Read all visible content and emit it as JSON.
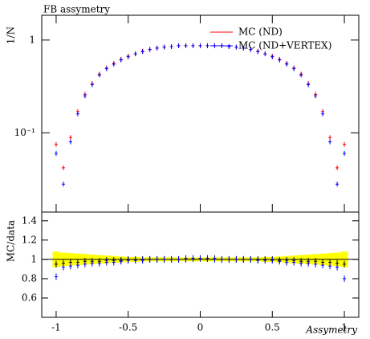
{
  "chart_data": [
    {
      "type": "scatter",
      "title": "FB assymetry",
      "y_label": "1/N",
      "log_y": true,
      "x": [
        -1,
        -0.95,
        -0.9,
        -0.85,
        -0.8,
        -0.75,
        -0.7,
        -0.65,
        -0.6,
        -0.55,
        -0.5,
        -0.45,
        -0.4,
        -0.35,
        -0.3,
        -0.25,
        -0.2,
        -0.15,
        -0.1,
        -0.05,
        0,
        0.05,
        0.1,
        0.15,
        0.2,
        0.25,
        0.3,
        0.35,
        0.4,
        0.45,
        0.5,
        0.55,
        0.6,
        0.65,
        0.7,
        0.75,
        0.8,
        0.85,
        0.9,
        0.95,
        1
      ],
      "series": [
        {
          "name": "MC (ND)",
          "color": "#ff0000",
          "values": [
            0.075,
            0.042,
            0.089,
            0.17,
            0.26,
            0.34,
            0.43,
            0.5,
            0.56,
            0.62,
            0.67,
            0.71,
            0.76,
            0.79,
            0.82,
            0.84,
            0.85,
            0.87,
            0.87,
            0.87,
            0.87,
            0.87,
            0.87,
            0.87,
            0.85,
            0.84,
            0.82,
            0.79,
            0.76,
            0.71,
            0.67,
            0.62,
            0.56,
            0.5,
            0.43,
            0.34,
            0.26,
            0.17,
            0.089,
            0.042,
            0.075
          ]
        },
        {
          "name": "MC (ND+VERTEX)",
          "color": "#0000ff",
          "values": [
            0.06,
            0.028,
            0.08,
            0.16,
            0.25,
            0.33,
            0.42,
            0.49,
            0.55,
            0.61,
            0.66,
            0.71,
            0.75,
            0.79,
            0.82,
            0.84,
            0.85,
            0.87,
            0.87,
            0.87,
            0.87,
            0.87,
            0.87,
            0.87,
            0.85,
            0.84,
            0.82,
            0.79,
            0.75,
            0.71,
            0.66,
            0.61,
            0.55,
            0.49,
            0.42,
            0.33,
            0.25,
            0.16,
            0.08,
            0.028,
            0.06
          ]
        }
      ],
      "xlim": [
        -1.1,
        1.1
      ],
      "ylim": [
        0.014,
        1.85
      ],
      "yticks": [
        1,
        {
          "value": 0.1,
          "label": "10⁻¹"
        }
      ]
    },
    {
      "type": "ratio",
      "y_label": "MC/data",
      "x_label": "Assymetry",
      "x": [
        -1,
        -0.95,
        -0.9,
        -0.85,
        -0.8,
        -0.75,
        -0.7,
        -0.65,
        -0.6,
        -0.55,
        -0.5,
        -0.45,
        -0.4,
        -0.35,
        -0.3,
        -0.25,
        -0.2,
        -0.15,
        -0.1,
        -0.05,
        0,
        0.05,
        0.1,
        0.15,
        0.2,
        0.25,
        0.3,
        0.35,
        0.4,
        0.45,
        0.5,
        0.55,
        0.6,
        0.65,
        0.7,
        0.75,
        0.8,
        0.85,
        0.9,
        0.95,
        1
      ],
      "band": {
        "color": "#ffff00",
        "lower": [
          0.92,
          0.93,
          0.935,
          0.94,
          0.945,
          0.95,
          0.955,
          0.96,
          0.965,
          0.97,
          0.975,
          0.975,
          0.98,
          0.98,
          0.98,
          0.98,
          0.98,
          0.98,
          0.98,
          0.98,
          0.98,
          0.98,
          0.98,
          0.98,
          0.98,
          0.98,
          0.98,
          0.98,
          0.98,
          0.975,
          0.975,
          0.97,
          0.965,
          0.96,
          0.955,
          0.95,
          0.945,
          0.94,
          0.935,
          0.93,
          0.92
        ],
        "upper": [
          1.08,
          1.07,
          1.065,
          1.06,
          1.055,
          1.05,
          1.045,
          1.04,
          1.035,
          1.03,
          1.025,
          1.025,
          1.02,
          1.02,
          1.02,
          1.02,
          1.02,
          1.02,
          1.02,
          1.02,
          1.02,
          1.02,
          1.02,
          1.02,
          1.02,
          1.02,
          1.02,
          1.02,
          1.02,
          1.025,
          1.025,
          1.03,
          1.035,
          1.04,
          1.045,
          1.05,
          1.055,
          1.06,
          1.065,
          1.07,
          1.08
        ]
      },
      "series": [
        {
          "color": "#000000",
          "values": [
            0.95,
            0.96,
            0.97,
            0.97,
            0.98,
            0.98,
            0.98,
            0.99,
            0.99,
            0.99,
            1,
            1,
            1,
            1,
            1,
            1,
            1,
            1,
            1.01,
            1.01,
            1.01,
            1.01,
            1.01,
            1,
            1,
            1,
            1,
            1,
            1,
            1,
            1,
            0.99,
            0.99,
            0.99,
            0.98,
            0.98,
            0.98,
            0.97,
            0.97,
            0.96,
            0.95
          ]
        },
        {
          "color": "#0000ff",
          "values": [
            0.82,
            0.92,
            0.93,
            0.94,
            0.95,
            0.96,
            0.96,
            0.97,
            0.97,
            0.98,
            0.99,
            0.99,
            0.99,
            1,
            1,
            1,
            1,
            1,
            1,
            1.01,
            1.01,
            1.01,
            1,
            1,
            1,
            1,
            1,
            1,
            0.99,
            0.99,
            0.99,
            0.98,
            0.97,
            0.97,
            0.96,
            0.96,
            0.95,
            0.94,
            0.93,
            0.92,
            0.8
          ]
        }
      ],
      "xlim": [
        -1.1,
        1.1
      ],
      "ylim": [
        0.4,
        1.49
      ],
      "xticks": [
        -1,
        -0.5,
        0,
        0.5,
        1
      ],
      "yticks": [
        0.6,
        0.8,
        1,
        1.2,
        1.4
      ],
      "ref_line": 1
    }
  ]
}
